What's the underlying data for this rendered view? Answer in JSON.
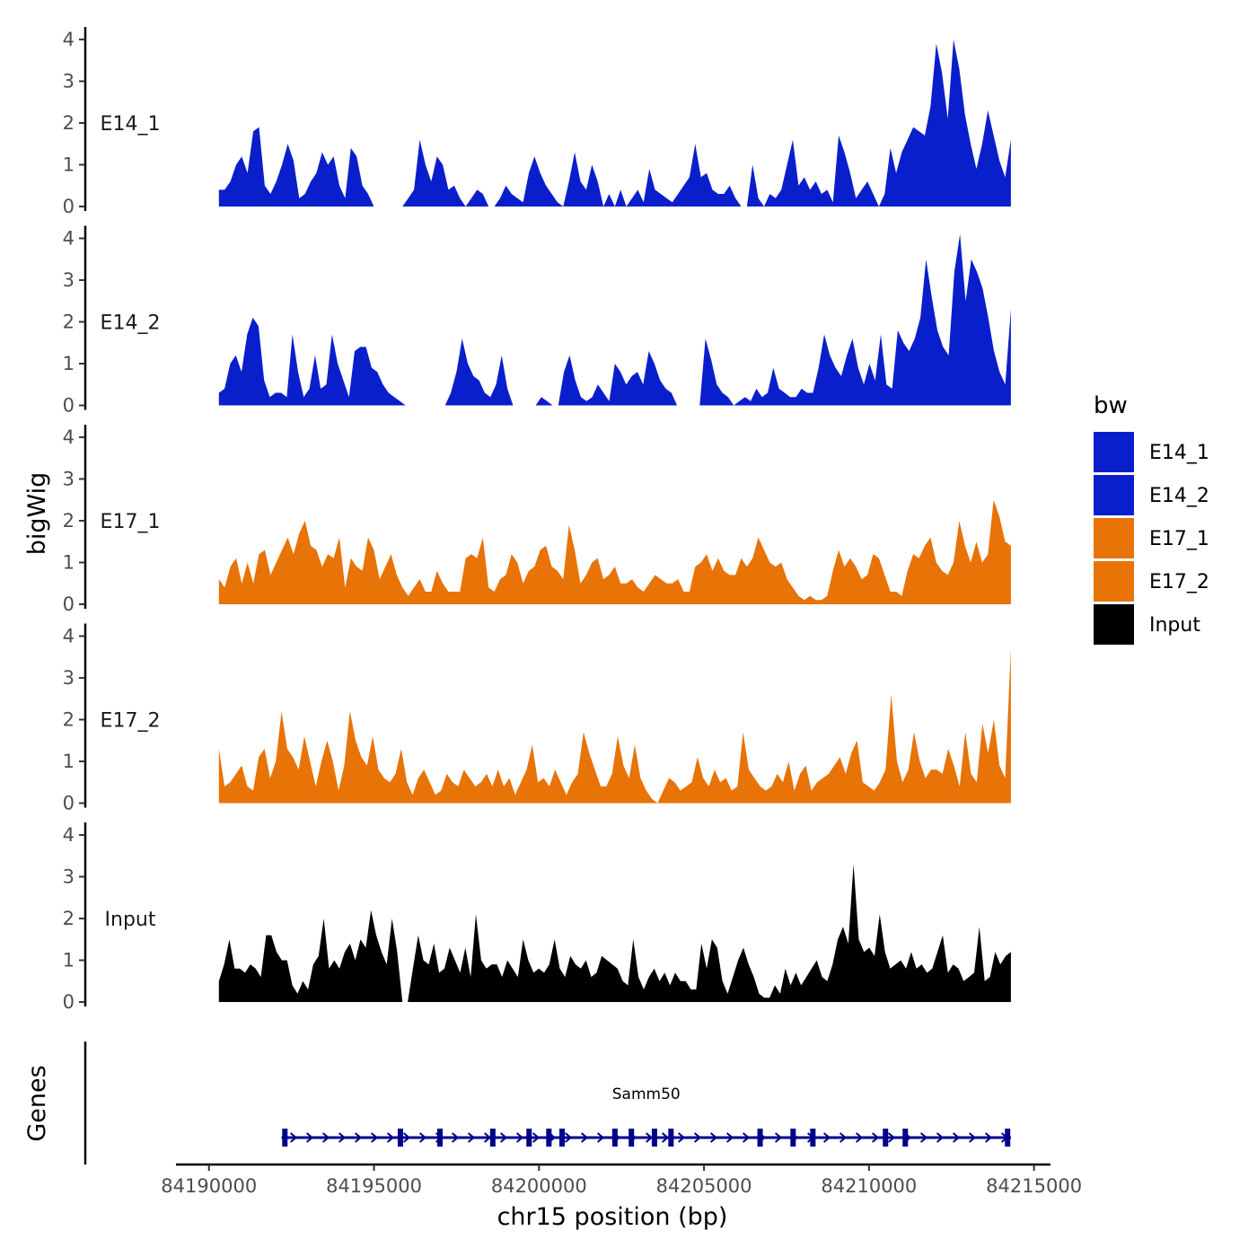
{
  "chart_data": {
    "type": "area",
    "chromosome": "chr15",
    "xlabel": "chr15 position (bp)",
    "ylabel": "bigWig",
    "genes_label": "Genes",
    "xlim": [
      84189000,
      84215500
    ],
    "x_ticks": [
      84190000,
      84195000,
      84200000,
      84205000,
      84210000,
      84215000
    ],
    "ylim": [
      0,
      4.3
    ],
    "y_ticks": [
      0,
      1,
      2,
      3,
      4
    ],
    "region": [
      84190300,
      84214300
    ],
    "legend": {
      "title": "bw",
      "entries": [
        {
          "name": "E14_1",
          "color": "#0A1FCC"
        },
        {
          "name": "E14_2",
          "color": "#0A1FCC"
        },
        {
          "name": "E17_1",
          "color": "#E87306"
        },
        {
          "name": "E17_2",
          "color": "#E87306"
        },
        {
          "name": "Input",
          "color": "#000000"
        }
      ]
    },
    "tracks": [
      {
        "name": "E14_1",
        "color": "#0A1FCC",
        "values": [
          0.4,
          0.4,
          0.6,
          1.0,
          1.2,
          0.8,
          1.8,
          1.9,
          0.5,
          0.3,
          0.6,
          1.0,
          1.5,
          1.1,
          0.2,
          0.3,
          0.6,
          0.8,
          1.3,
          1.0,
          1.2,
          0.5,
          0.2,
          1.4,
          1.2,
          0.5,
          0.3,
          0,
          0,
          0,
          0,
          0,
          0,
          0.2,
          0.4,
          1.6,
          1.0,
          0.6,
          1.2,
          1.0,
          0.4,
          0.5,
          0.2,
          0,
          0.2,
          0.4,
          0.3,
          0,
          0,
          0.2,
          0.5,
          0.3,
          0.2,
          0.1,
          0.8,
          1.2,
          0.8,
          0.5,
          0.3,
          0.1,
          0,
          0.6,
          1.3,
          0.6,
          0.4,
          1.0,
          0.6,
          0,
          0.3,
          0,
          0.4,
          0,
          0.2,
          0.4,
          0.1,
          0.9,
          0.4,
          0.3,
          0.2,
          0.1,
          0.3,
          0.5,
          0.7,
          1.5,
          0.7,
          0.8,
          0.4,
          0.3,
          0.3,
          0.5,
          0.2,
          0,
          0,
          1.0,
          0.2,
          0,
          0.3,
          0.2,
          0.4,
          1.0,
          1.6,
          0.5,
          0.7,
          0.4,
          0.6,
          0.3,
          0.4,
          0.1,
          1.7,
          1.3,
          0.8,
          0.2,
          0.4,
          0.6,
          0.3,
          0,
          0.3,
          1.4,
          0.8,
          1.3,
          1.6,
          1.9,
          1.8,
          1.7,
          2.4,
          3.9,
          3.2,
          2.1,
          4.0,
          3.3,
          2.2,
          1.5,
          0.9,
          1.5,
          2.3,
          1.7,
          1.1,
          0.7,
          1.6
        ]
      },
      {
        "name": "E14_2",
        "color": "#0A1FCC",
        "values": [
          0.3,
          0.4,
          1.0,
          1.2,
          0.8,
          1.7,
          2.1,
          1.9,
          0.6,
          0.2,
          0.3,
          0.3,
          0.2,
          1.7,
          0.8,
          0.2,
          0.4,
          1.2,
          0.4,
          0.5,
          1.7,
          1.0,
          0.6,
          0.2,
          1.3,
          1.4,
          1.4,
          0.9,
          0.8,
          0.5,
          0.3,
          0.2,
          0.1,
          0,
          0,
          0,
          0,
          0,
          0,
          0,
          0,
          0.3,
          0.8,
          1.6,
          1.0,
          0.7,
          0.6,
          0.3,
          0.2,
          0.5,
          1.2,
          0.4,
          0,
          0,
          0,
          0,
          0,
          0.2,
          0.1,
          0,
          0,
          0.8,
          1.2,
          0.6,
          0.2,
          0.1,
          0.2,
          0.5,
          0.3,
          0.1,
          1.0,
          0.8,
          0.5,
          0.7,
          0.8,
          0.5,
          1.3,
          1.0,
          0.6,
          0.4,
          0.3,
          0,
          0,
          0,
          0,
          0,
          1.6,
          1.1,
          0.5,
          0.3,
          0.2,
          0,
          0.1,
          0.2,
          0.1,
          0.4,
          0.2,
          0.3,
          0.9,
          0.4,
          0.3,
          0.2,
          0.2,
          0.4,
          0.3,
          0.3,
          0.9,
          1.7,
          1.2,
          0.9,
          0.7,
          1.2,
          1.6,
          0.9,
          0.5,
          1.0,
          0.6,
          1.7,
          0.5,
          0.4,
          1.8,
          1.5,
          1.3,
          1.6,
          2.1,
          3.5,
          2.6,
          1.8,
          1.4,
          1.2,
          3.2,
          4.1,
          2.5,
          3.5,
          3.2,
          2.8,
          2.1,
          1.3,
          0.8,
          0.5,
          2.3
        ]
      },
      {
        "name": "E17_1",
        "color": "#E87306",
        "values": [
          0.6,
          0.4,
          0.9,
          1.1,
          0.5,
          1.0,
          0.5,
          1.2,
          1.3,
          0.7,
          1.0,
          1.3,
          1.6,
          1.2,
          1.7,
          2.0,
          1.4,
          1.3,
          0.9,
          1.2,
          1.1,
          1.6,
          0.4,
          1.1,
          0.9,
          0.8,
          1.6,
          1.3,
          0.6,
          0.9,
          1.2,
          0.7,
          0.4,
          0.2,
          0.4,
          0.6,
          0.3,
          0.3,
          0.8,
          0.5,
          0.3,
          0.3,
          0.3,
          1.1,
          1.2,
          1.1,
          1.6,
          0.4,
          0.3,
          0.6,
          0.7,
          1.2,
          1.0,
          0.5,
          0.8,
          0.9,
          1.3,
          1.4,
          0.9,
          0.8,
          0.6,
          1.9,
          1.3,
          0.5,
          0.7,
          1.0,
          1.1,
          0.6,
          0.7,
          0.9,
          0.5,
          0.5,
          0.6,
          0.4,
          0.3,
          0.5,
          0.7,
          0.6,
          0.5,
          0.5,
          0.6,
          0.3,
          0.3,
          0.9,
          1.0,
          1.2,
          0.8,
          1.1,
          0.8,
          0.7,
          0.7,
          1.1,
          0.9,
          1.1,
          1.6,
          1.3,
          1.0,
          0.9,
          1.0,
          0.6,
          0.4,
          0.2,
          0.1,
          0.2,
          0.1,
          0.1,
          0.2,
          0.8,
          1.3,
          0.9,
          1.1,
          0.9,
          0.6,
          0.7,
          1.2,
          1.1,
          0.7,
          0.3,
          0.3,
          0.2,
          0.8,
          1.2,
          1.1,
          1.4,
          1.6,
          1.0,
          0.8,
          0.7,
          1.0,
          2.0,
          1.4,
          1.0,
          1.5,
          1.0,
          1.2,
          2.5,
          2.1,
          1.5,
          1.4
        ]
      },
      {
        "name": "E17_2",
        "color": "#E87306",
        "values": [
          1.3,
          0.4,
          0.5,
          0.7,
          0.9,
          0.4,
          0.3,
          1.1,
          1.3,
          0.6,
          1.0,
          2.2,
          1.3,
          1.1,
          0.8,
          1.6,
          1.0,
          0.4,
          1.0,
          1.5,
          1.0,
          0.3,
          0.9,
          2.2,
          1.5,
          1.1,
          0.9,
          1.6,
          0.8,
          0.6,
          0.5,
          0.7,
          1.3,
          0.5,
          0.2,
          0.6,
          0.8,
          0.5,
          0.2,
          0.3,
          0.7,
          0.5,
          0.4,
          0.8,
          0.6,
          0.4,
          0.5,
          0.7,
          0.4,
          0.8,
          0.4,
          0.6,
          0.2,
          0.5,
          0.8,
          1.4,
          0.5,
          0.6,
          0.4,
          0.8,
          0.5,
          0.2,
          0.5,
          0.7,
          1.7,
          1.2,
          0.8,
          0.4,
          0.4,
          0.7,
          1.6,
          0.9,
          0.6,
          1.4,
          0.6,
          0.3,
          0.1,
          0,
          0.3,
          0.6,
          0.5,
          0.3,
          0.4,
          0.5,
          1.1,
          0.6,
          0.4,
          0.8,
          0.5,
          0.6,
          0.3,
          0.4,
          1.7,
          0.8,
          0.6,
          0.4,
          0.3,
          0.4,
          0.7,
          0.5,
          1.0,
          0.3,
          0.7,
          0.9,
          0.3,
          0.5,
          0.6,
          0.7,
          0.9,
          1.1,
          0.7,
          1.2,
          1.5,
          0.5,
          0.4,
          0.3,
          0.5,
          0.8,
          2.6,
          1.0,
          0.5,
          0.8,
          1.7,
          1.0,
          0.6,
          0.8,
          0.8,
          0.7,
          1.3,
          0.9,
          0.4,
          1.7,
          0.7,
          0.5,
          1.9,
          1.2,
          2.0,
          0.9,
          0.6,
          3.7
        ]
      },
      {
        "name": "Input",
        "color": "#000000",
        "values": [
          0.5,
          0.9,
          1.5,
          0.8,
          0.8,
          0.7,
          0.9,
          0.8,
          0.6,
          1.6,
          1.6,
          1.2,
          1.0,
          1.0,
          0.4,
          0.2,
          0.5,
          0.3,
          0.9,
          1.1,
          2.0,
          0.8,
          1.0,
          0.8,
          1.2,
          1.4,
          1.0,
          1.5,
          1.3,
          2.2,
          1.6,
          1.2,
          0.9,
          2.0,
          1.2,
          0,
          0,
          0.8,
          1.6,
          1.0,
          0.9,
          1.4,
          0.7,
          0.8,
          1.3,
          1.0,
          0.7,
          1.3,
          0.6,
          2.1,
          1.0,
          0.8,
          0.9,
          0.9,
          0.6,
          1.0,
          0.8,
          0.6,
          1.5,
          1.0,
          0.7,
          0.8,
          0.7,
          0.9,
          1.5,
          0.8,
          0.6,
          1.1,
          0.9,
          0.8,
          1.0,
          0.6,
          0.7,
          1.1,
          1.0,
          0.9,
          0.8,
          0.5,
          0.4,
          1.5,
          0.6,
          0.3,
          0.6,
          0.8,
          0.5,
          0.7,
          0.4,
          0.7,
          0.5,
          0.5,
          0.3,
          0.3,
          1.4,
          0.8,
          1.5,
          1.3,
          0.5,
          0.2,
          0.6,
          1.0,
          1.3,
          0.9,
          0.6,
          0.2,
          0.1,
          0.1,
          0.4,
          0.2,
          0.8,
          0.4,
          0.7,
          0.4,
          0.6,
          0.8,
          1.0,
          0.6,
          0.5,
          0.9,
          1.5,
          1.8,
          1.4,
          3.3,
          1.5,
          1.2,
          1.3,
          1.1,
          2.1,
          1.2,
          0.8,
          0.9,
          1.0,
          0.8,
          1.2,
          0.8,
          0.9,
          0.7,
          0.8,
          1.2,
          1.6,
          0.7,
          0.9,
          0.8,
          0.5,
          0.6,
          0.7,
          1.8,
          0.5,
          0.6,
          1.2,
          0.9,
          1.1,
          1.2
        ]
      }
    ],
    "gene": {
      "name": "Samm50",
      "start": 84192200,
      "end": 84214300,
      "strand": "+",
      "exons": [
        84192300,
        84195800,
        84197000,
        84198600,
        84199700,
        84200300,
        84200700,
        84202300,
        84202800,
        84203500,
        84204000,
        84206700,
        84207700,
        84208300,
        84210500,
        84211100,
        84214200
      ]
    }
  }
}
